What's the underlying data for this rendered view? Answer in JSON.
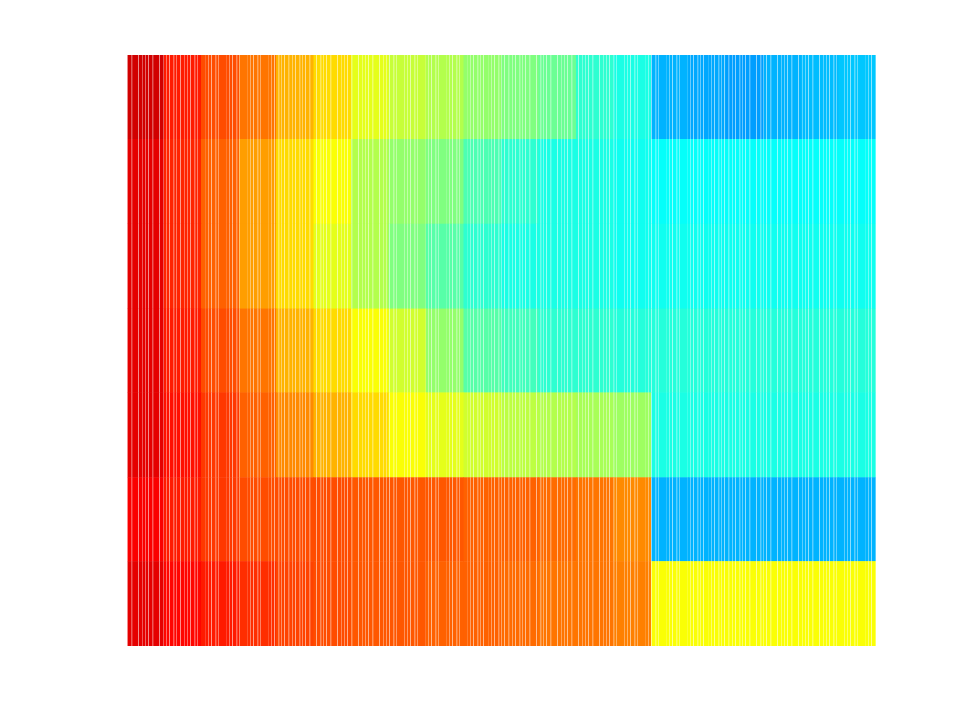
{
  "chart_data": {
    "type": "heatmap",
    "tick_labels": false,
    "color_range": [
      0,
      1
    ],
    "cells": [
      [
        0.92,
        0.85,
        0.8,
        0.76,
        0.7,
        0.66,
        0.6,
        0.57,
        0.55,
        0.52,
        0.5,
        0.48,
        0.42,
        0.4,
        0.3,
        0.29,
        0.28,
        0.3,
        0.31,
        0.32
      ],
      [
        0.9,
        0.84,
        0.78,
        0.72,
        0.66,
        0.62,
        0.55,
        0.52,
        0.5,
        0.45,
        0.42,
        0.4,
        0.4,
        0.39,
        0.38,
        0.38,
        0.38,
        0.38,
        0.38,
        0.38
      ],
      [
        0.9,
        0.84,
        0.78,
        0.72,
        0.66,
        0.6,
        0.55,
        0.5,
        0.46,
        0.42,
        0.4,
        0.4,
        0.4,
        0.39,
        0.39,
        0.39,
        0.39,
        0.39,
        0.39,
        0.39
      ],
      [
        0.9,
        0.85,
        0.8,
        0.76,
        0.7,
        0.66,
        0.62,
        0.58,
        0.52,
        0.46,
        0.44,
        0.42,
        0.42,
        0.41,
        0.41,
        0.41,
        0.41,
        0.41,
        0.41,
        0.41
      ],
      [
        0.9,
        0.86,
        0.82,
        0.78,
        0.74,
        0.7,
        0.66,
        0.62,
        0.6,
        0.58,
        0.56,
        0.55,
        0.54,
        0.53,
        0.4,
        0.4,
        0.4,
        0.4,
        0.4,
        0.4
      ],
      [
        0.88,
        0.85,
        0.82,
        0.8,
        0.8,
        0.8,
        0.79,
        0.79,
        0.79,
        0.78,
        0.78,
        0.77,
        0.76,
        0.74,
        0.3,
        0.3,
        0.3,
        0.3,
        0.3,
        0.3
      ],
      [
        0.9,
        0.87,
        0.85,
        0.83,
        0.81,
        0.8,
        0.79,
        0.79,
        0.78,
        0.78,
        0.77,
        0.76,
        0.76,
        0.75,
        0.62,
        0.62,
        0.62,
        0.62,
        0.62,
        0.62
      ]
    ]
  }
}
